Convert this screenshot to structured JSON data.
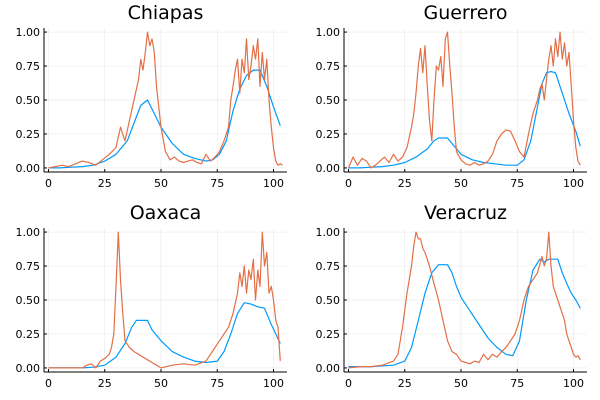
{
  "colors": {
    "series_1": "#009AFA",
    "series_2": "#E36F47"
  },
  "chart_data": [
    {
      "type": "line",
      "title": "Chiapas",
      "xlim": [
        -2,
        106
      ],
      "ylim": [
        -0.03,
        1.03
      ],
      "xticks": [
        0,
        25,
        50,
        75,
        100
      ],
      "yticks": [
        0,
        0.25,
        0.5,
        0.75,
        1
      ],
      "ytick_labels": [
        "0.00",
        "0.25",
        "0.50",
        "0.75",
        "1.00"
      ],
      "grid": true,
      "legend": "none",
      "series": [
        {
          "color_key": "series_1",
          "x": [
            0,
            5,
            10,
            15,
            20,
            25,
            30,
            35,
            38,
            41,
            44,
            47,
            50,
            55,
            60,
            65,
            70,
            73,
            76,
            79,
            82,
            85,
            88,
            91,
            94,
            97,
            100,
            103
          ],
          "y": [
            0,
            0,
            0.005,
            0.01,
            0.02,
            0.05,
            0.1,
            0.2,
            0.33,
            0.46,
            0.5,
            0.4,
            0.3,
            0.18,
            0.1,
            0.07,
            0.05,
            0.06,
            0.1,
            0.2,
            0.42,
            0.58,
            0.68,
            0.72,
            0.72,
            0.6,
            0.45,
            0.31
          ]
        },
        {
          "color_key": "series_2",
          "x": [
            0,
            3,
            6,
            9,
            12,
            15,
            18,
            21,
            24,
            27,
            30,
            32,
            34,
            36,
            38,
            40,
            41,
            42,
            43,
            44,
            45,
            46,
            47,
            48,
            50,
            52,
            54,
            56,
            58,
            60,
            62,
            64,
            66,
            68,
            70,
            72,
            74,
            76,
            78,
            80,
            81,
            82,
            83,
            84,
            85,
            86,
            87,
            88,
            89,
            90,
            91,
            92,
            93,
            94,
            95,
            96,
            97,
            98,
            99,
            100,
            101,
            102,
            103,
            104
          ],
          "y": [
            0,
            0.01,
            0.02,
            0.01,
            0.03,
            0.05,
            0.04,
            0.02,
            0.06,
            0.1,
            0.15,
            0.3,
            0.2,
            0.35,
            0.5,
            0.65,
            0.8,
            0.72,
            0.85,
            1,
            0.9,
            0.95,
            0.85,
            0.6,
            0.3,
            0.12,
            0.06,
            0.08,
            0.05,
            0.04,
            0.05,
            0.06,
            0.04,
            0.03,
            0.1,
            0.05,
            0.08,
            0.12,
            0.2,
            0.3,
            0.5,
            0.6,
            0.72,
            0.8,
            0.55,
            0.8,
            0.7,
            0.95,
            0.65,
            0.75,
            0.9,
            0.8,
            0.95,
            0.6,
            0.85,
            0.65,
            0.8,
            0.5,
            0.3,
            0.15,
            0.05,
            0.02,
            0.03,
            0.02
          ]
        }
      ]
    },
    {
      "type": "line",
      "title": "Guerrero",
      "xlim": [
        -2,
        106
      ],
      "ylim": [
        -0.03,
        1.03
      ],
      "xticks": [
        0,
        25,
        50,
        75,
        100
      ],
      "yticks": [
        0,
        0.25,
        0.5,
        0.75,
        1
      ],
      "ytick_labels": [
        "0.00",
        "0.25",
        "0.50",
        "0.75",
        "1.00"
      ],
      "grid": true,
      "legend": "none",
      "series": [
        {
          "color_key": "series_1",
          "x": [
            0,
            5,
            10,
            15,
            20,
            25,
            30,
            35,
            38,
            40,
            42,
            44,
            46,
            48,
            50,
            55,
            60,
            65,
            70,
            75,
            78,
            81,
            84,
            86,
            88,
            90,
            92,
            95,
            98,
            101,
            103
          ],
          "y": [
            0,
            0,
            0.005,
            0.01,
            0.02,
            0.04,
            0.08,
            0.14,
            0.2,
            0.22,
            0.22,
            0.22,
            0.18,
            0.14,
            0.1,
            0.06,
            0.04,
            0.03,
            0.02,
            0.02,
            0.06,
            0.2,
            0.45,
            0.62,
            0.7,
            0.71,
            0.7,
            0.55,
            0.4,
            0.27,
            0.16
          ]
        },
        {
          "color_key": "series_2",
          "x": [
            0,
            2,
            4,
            6,
            8,
            10,
            12,
            14,
            16,
            18,
            20,
            22,
            24,
            26,
            28,
            29,
            30,
            31,
            32,
            33,
            34,
            35,
            36,
            37,
            38,
            39,
            40,
            41,
            42,
            43,
            44,
            45,
            46,
            47,
            48,
            50,
            52,
            54,
            56,
            58,
            60,
            62,
            64,
            66,
            68,
            70,
            72,
            74,
            76,
            78,
            80,
            82,
            84,
            85,
            86,
            87,
            88,
            89,
            90,
            91,
            92,
            93,
            94,
            95,
            96,
            97,
            98,
            99,
            100,
            101,
            102,
            103
          ],
          "y": [
            0,
            0.08,
            0.02,
            0.07,
            0.05,
            0,
            0.02,
            0.05,
            0.08,
            0.04,
            0.1,
            0.05,
            0.08,
            0.15,
            0.3,
            0.4,
            0.55,
            0.75,
            0.88,
            0.7,
            0.9,
            0.6,
            0.35,
            0.2,
            0.5,
            0.75,
            0.72,
            0.82,
            0.6,
            0.95,
            1,
            0.75,
            0.55,
            0.3,
            0.12,
            0.06,
            0.03,
            0.02,
            0.04,
            0.02,
            0.03,
            0.05,
            0.1,
            0.2,
            0.25,
            0.28,
            0.27,
            0.2,
            0.12,
            0.08,
            0.25,
            0.4,
            0.5,
            0.58,
            0.62,
            0.5,
            0.65,
            0.8,
            0.9,
            0.75,
            0.95,
            0.82,
            1,
            0.8,
            0.92,
            0.75,
            0.85,
            0.6,
            0.35,
            0.15,
            0.05,
            0.02
          ]
        }
      ]
    },
    {
      "type": "line",
      "title": "Oaxaca",
      "xlim": [
        -2,
        106
      ],
      "ylim": [
        -0.03,
        1.03
      ],
      "xticks": [
        0,
        25,
        50,
        75,
        100
      ],
      "yticks": [
        0,
        0.25,
        0.5,
        0.75,
        1
      ],
      "ytick_labels": [
        "0.00",
        "0.25",
        "0.50",
        "0.75",
        "1.00"
      ],
      "grid": true,
      "legend": "none",
      "series": [
        {
          "color_key": "series_1",
          "x": [
            0,
            5,
            10,
            15,
            20,
            25,
            30,
            34,
            37,
            39,
            42,
            44,
            46,
            50,
            55,
            60,
            65,
            70,
            75,
            78,
            81,
            84,
            87,
            90,
            93,
            96,
            99,
            103
          ],
          "y": [
            0,
            0,
            0,
            0,
            0.005,
            0.02,
            0.08,
            0.18,
            0.3,
            0.35,
            0.35,
            0.35,
            0.28,
            0.2,
            0.12,
            0.08,
            0.05,
            0.04,
            0.05,
            0.12,
            0.25,
            0.4,
            0.48,
            0.47,
            0.45,
            0.44,
            0.32,
            0.18
          ]
        },
        {
          "color_key": "series_2",
          "x": [
            0,
            5,
            10,
            15,
            17,
            19,
            21,
            23,
            25,
            27,
            28,
            29,
            30,
            31,
            32,
            33,
            34,
            36,
            38,
            40,
            42,
            44,
            46,
            48,
            50,
            55,
            60,
            65,
            70,
            72,
            74,
            76,
            78,
            80,
            82,
            84,
            85,
            86,
            87,
            88,
            89,
            90,
            91,
            92,
            93,
            94,
            95,
            96,
            97,
            98,
            99,
            100,
            101,
            102,
            103
          ],
          "y": [
            0,
            0,
            0,
            0,
            0.02,
            0.03,
            0,
            0.05,
            0.07,
            0.1,
            0.15,
            0.25,
            0.6,
            1,
            0.65,
            0.4,
            0.2,
            0.15,
            0.12,
            0.1,
            0.08,
            0.06,
            0.04,
            0.02,
            0,
            0.02,
            0.03,
            0.02,
            0.05,
            0.1,
            0.15,
            0.2,
            0.25,
            0.3,
            0.4,
            0.55,
            0.7,
            0.6,
            0.75,
            0.55,
            0.72,
            0.65,
            0.8,
            0.5,
            0.72,
            0.6,
            1,
            0.75,
            0.85,
            0.55,
            0.6,
            0.5,
            0.35,
            0.3,
            0.05
          ]
        }
      ]
    },
    {
      "type": "line",
      "title": "Veracruz",
      "xlim": [
        -2,
        106
      ],
      "ylim": [
        -0.03,
        1.03
      ],
      "xticks": [
        0,
        25,
        50,
        75,
        100
      ],
      "yticks": [
        0,
        0.25,
        0.5,
        0.75,
        1
      ],
      "ytick_labels": [
        "0.00",
        "0.25",
        "0.50",
        "0.75",
        "1.00"
      ],
      "grid": true,
      "legend": "none",
      "series": [
        {
          "color_key": "series_1",
          "x": [
            0,
            5,
            10,
            15,
            20,
            25,
            28,
            31,
            34,
            37,
            40,
            42,
            44,
            46,
            48,
            50,
            54,
            58,
            62,
            66,
            70,
            73,
            76,
            79,
            82,
            85,
            87,
            89,
            91,
            93,
            95,
            97,
            99,
            101,
            103
          ],
          "y": [
            0.01,
            0.01,
            0.01,
            0.015,
            0.02,
            0.05,
            0.15,
            0.35,
            0.55,
            0.7,
            0.76,
            0.76,
            0.76,
            0.7,
            0.6,
            0.52,
            0.42,
            0.32,
            0.22,
            0.15,
            0.1,
            0.09,
            0.2,
            0.5,
            0.72,
            0.8,
            0.78,
            0.8,
            0.8,
            0.8,
            0.7,
            0.62,
            0.55,
            0.5,
            0.44
          ]
        },
        {
          "color_key": "series_2",
          "x": [
            0,
            5,
            10,
            15,
            20,
            22,
            24,
            26,
            28,
            29,
            30,
            31,
            32,
            33,
            34,
            36,
            38,
            40,
            42,
            44,
            46,
            48,
            50,
            52,
            54,
            56,
            58,
            60,
            62,
            64,
            66,
            68,
            70,
            72,
            74,
            76,
            78,
            80,
            82,
            84,
            86,
            87,
            88,
            89,
            90,
            91,
            92,
            93,
            94,
            95,
            96,
            97,
            98,
            99,
            100,
            101,
            102,
            103
          ],
          "y": [
            0,
            0.01,
            0.01,
            0.02,
            0.05,
            0.1,
            0.3,
            0.55,
            0.75,
            0.9,
            1,
            0.95,
            0.95,
            0.88,
            0.85,
            0.75,
            0.62,
            0.5,
            0.35,
            0.2,
            0.12,
            0.1,
            0.05,
            0.04,
            0.03,
            0.05,
            0.04,
            0.1,
            0.06,
            0.1,
            0.08,
            0.12,
            0.15,
            0.2,
            0.25,
            0.35,
            0.5,
            0.6,
            0.65,
            0.7,
            0.82,
            0.75,
            0.8,
            1,
            0.75,
            0.6,
            0.55,
            0.5,
            0.45,
            0.4,
            0.35,
            0.25,
            0.2,
            0.15,
            0.1,
            0.08,
            0.09,
            0.06
          ]
        }
      ]
    }
  ]
}
